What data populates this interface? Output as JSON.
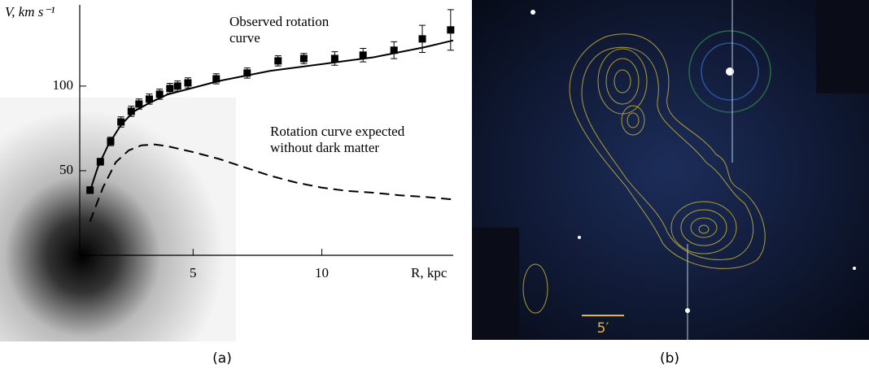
{
  "chart_data": {
    "type": "line",
    "y_label": "V, km s⁻¹",
    "x_label": "R, kpc",
    "annotations": [
      {
        "lines": [
          "Observed rotation",
          "curve"
        ]
      },
      {
        "lines": [
          "Rotation curve expected",
          "without dark matter"
        ]
      }
    ],
    "xlim": [
      0.6,
      15.1
    ],
    "ylim": [
      0,
      148
    ],
    "xticks": [
      5,
      10
    ],
    "yticks": [
      50,
      100
    ],
    "series": [
      {
        "style": "markers-errorbars",
        "color": "#000000",
        "x": [
          1.0,
          1.4,
          1.8,
          2.2,
          2.6,
          2.9,
          3.3,
          3.7,
          4.1,
          4.4,
          4.8,
          5.9,
          7.1,
          8.3,
          9.3,
          10.5,
          11.6,
          12.8,
          13.9,
          15.0
        ],
        "values": [
          38.5,
          55.3,
          67.3,
          78.8,
          85.1,
          89.4,
          92.3,
          95.2,
          98.6,
          100,
          101.9,
          104.3,
          107.7,
          114.9,
          116.3,
          116.3,
          118.3,
          121.2,
          127.9,
          133.2
        ],
        "errors": [
          2,
          2,
          2.5,
          3,
          3,
          3,
          3,
          3,
          3,
          3,
          3,
          3,
          3,
          3,
          3,
          4,
          4,
          5,
          8,
          12
        ]
      },
      {
        "style": "solid",
        "color": "#000000",
        "x": [
          1.0,
          1.3,
          1.7,
          2.2,
          2.7,
          3.3,
          4,
          5,
          6,
          7,
          8,
          9,
          10,
          11,
          12,
          13,
          14,
          15.1
        ],
        "values": [
          38,
          52,
          65,
          77,
          85,
          90,
          95,
          99,
          103,
          106,
          109,
          111,
          113,
          115,
          117,
          120,
          123,
          127
        ]
      },
      {
        "style": "dashed",
        "color": "#000000",
        "x": [
          1.0,
          1.5,
          2,
          2.5,
          3,
          3.5,
          4,
          5,
          6,
          7,
          8,
          9,
          10,
          11,
          12,
          13,
          14,
          15.1
        ],
        "values": [
          20,
          40,
          55,
          62,
          65,
          65.5,
          64.5,
          61,
          57,
          52,
          47,
          43,
          40,
          38,
          37,
          35.5,
          34.5,
          33
        ]
      }
    ]
  },
  "image": {
    "scale_label": "5′"
  },
  "captions": [
    "(a)",
    "(b)"
  ]
}
